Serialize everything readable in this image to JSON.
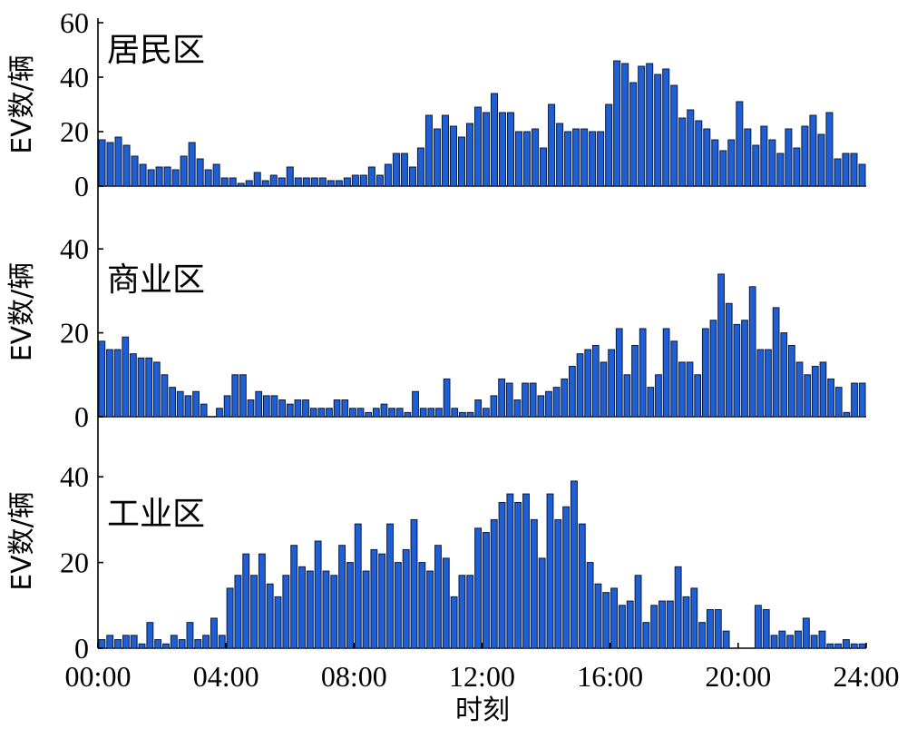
{
  "chart_data": [
    {
      "type": "bar",
      "title": "居民区",
      "ylabel": "EV数/辆",
      "ylim": [
        0,
        60
      ],
      "yticks": [
        "0",
        "20",
        "40",
        "60"
      ],
      "bar_color": "#1f5fd6",
      "values": [
        17,
        16,
        18,
        15,
        11,
        8,
        6,
        7,
        7,
        6,
        11,
        16,
        10,
        6,
        8,
        3,
        3,
        1,
        2,
        5,
        2,
        4,
        3,
        7,
        3,
        3,
        3,
        3,
        2,
        2,
        3,
        4,
        4,
        7,
        4,
        8,
        12,
        12,
        7,
        14,
        26,
        21,
        26,
        22,
        18,
        23,
        29,
        27,
        34,
        27,
        27,
        20,
        20,
        21,
        14,
        30,
        23,
        20,
        21,
        21,
        20,
        20,
        30,
        46,
        45,
        38,
        44,
        45,
        41,
        43,
        37,
        25,
        28,
        24,
        21,
        17,
        13,
        17,
        31,
        21,
        15,
        22,
        17,
        12,
        21,
        14,
        22,
        26,
        19,
        27,
        10,
        12,
        12,
        8
      ]
    },
    {
      "type": "bar",
      "title": "商业区",
      "ylabel": "EV数/辆",
      "ylim": [
        0,
        50
      ],
      "yticks": [
        "0",
        "20",
        "40"
      ],
      "bar_color": "#1f5fd6",
      "values": [
        18,
        16,
        16,
        19,
        15,
        14,
        14,
        13,
        10,
        7,
        6,
        5,
        6,
        3,
        0,
        2,
        5,
        10,
        10,
        4,
        6,
        5,
        5,
        4,
        3,
        4,
        4,
        2,
        2,
        2,
        4,
        4,
        2,
        2,
        1,
        2,
        3,
        2,
        2,
        1,
        6,
        2,
        2,
        2,
        9,
        2,
        1,
        1,
        4,
        2,
        5,
        9,
        8,
        4,
        8,
        8,
        5,
        6,
        7,
        9,
        12,
        15,
        16,
        17,
        13,
        16,
        21,
        10,
        17,
        21,
        7,
        10,
        21,
        18,
        13,
        13,
        10,
        21,
        23,
        34,
        27,
        22,
        23,
        31,
        16,
        16,
        26,
        20,
        17,
        13,
        10,
        12,
        13,
        9,
        7,
        1,
        8,
        8
      ]
    },
    {
      "type": "bar",
      "title": "工业区",
      "ylabel": "EV数/辆",
      "ylim": [
        0,
        50
      ],
      "yticks": [
        "0",
        "20",
        "40"
      ],
      "xlabel": "时刻",
      "xticks": [
        "00:00",
        "04:00",
        "08:00",
        "12:00",
        "16:00",
        "20:00",
        "24:00"
      ],
      "bar_color": "#1f5fd6",
      "values": [
        2,
        3,
        2,
        3,
        3,
        1,
        6,
        2,
        1,
        3,
        2,
        6,
        2,
        3,
        7,
        3,
        14,
        17,
        22,
        17,
        22,
        15,
        12,
        17,
        24,
        19,
        18,
        25,
        18,
        17,
        24,
        20,
        29,
        18,
        23,
        22,
        29,
        20,
        23,
        30,
        20,
        18,
        24,
        21,
        12,
        17,
        17,
        28,
        27,
        30,
        34,
        36,
        34,
        36,
        30,
        21,
        36,
        30,
        33,
        39,
        29,
        20,
        15,
        13,
        14,
        10,
        11,
        17,
        6,
        10,
        11,
        11,
        19,
        12,
        14,
        6,
        9,
        9,
        4,
        0,
        0,
        0,
        10,
        9,
        3,
        4,
        3,
        4,
        7,
        3,
        4,
        1,
        1,
        2,
        1,
        1
      ]
    }
  ]
}
